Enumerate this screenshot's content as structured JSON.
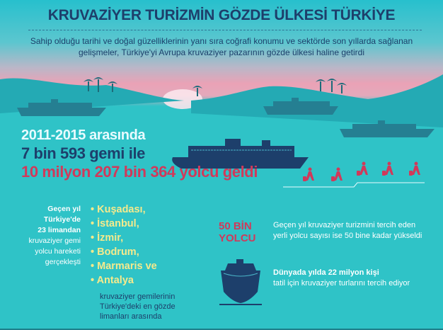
{
  "title": "KRUVAZİYER TURİZMİN GÖZDE ÜLKESİ TÜRKİYE",
  "intro": "Sahip olduğu tarihi ve doğal güzelliklerinin yanı sıra coğrafi konumu ve sektörde son yıllarda sağlanan gelişmeler, Türkiye'yi Avrupa kruvaziyer pazarının gözde ülkesi haline getirdi",
  "stats": {
    "period": "2011-2015 arasında",
    "ships": "7 bin 593 gemi ile",
    "passengers": "10 milyon 207 bin 364 yolcu geldi"
  },
  "left_note": {
    "bold_lines": [
      "Geçen yıl",
      "Türkiye'de",
      "23 limandan"
    ],
    "lines": [
      "kruvaziyer gemi",
      "yolcu hareketi",
      "gerçekleşti"
    ]
  },
  "ports": [
    "Kuşadası,",
    "İstanbul,",
    "İzmir,",
    "Bodrum,",
    "Marmaris ve",
    "Antalya"
  ],
  "ports_note": [
    "kruvaziyer gemilerinin",
    "Türkiye'deki en gözde",
    "limanları arasında"
  ],
  "domestic": {
    "badge_lines": [
      "50 BİN",
      "YOLCU"
    ],
    "text_lines": [
      "Geçen yıl kruvaziyer turizmini tercih eden",
      "yerli yolcu sayısı ise 50 bine kadar yükseldi"
    ]
  },
  "world": {
    "bold": "Dünyada yılda 22 milyon kişi",
    "text": "tatil için kruvaziyer turlarını tercih ediyor"
  },
  "icons": [
    "palm-tree-icon",
    "cruise-ship-icon",
    "traveler-icon",
    "ship-bow-icon"
  ],
  "colors": {
    "navy": "#1d3f6b",
    "red": "#d1395a",
    "yellow": "#f5ea8c",
    "sea": "#2fc3c7"
  }
}
